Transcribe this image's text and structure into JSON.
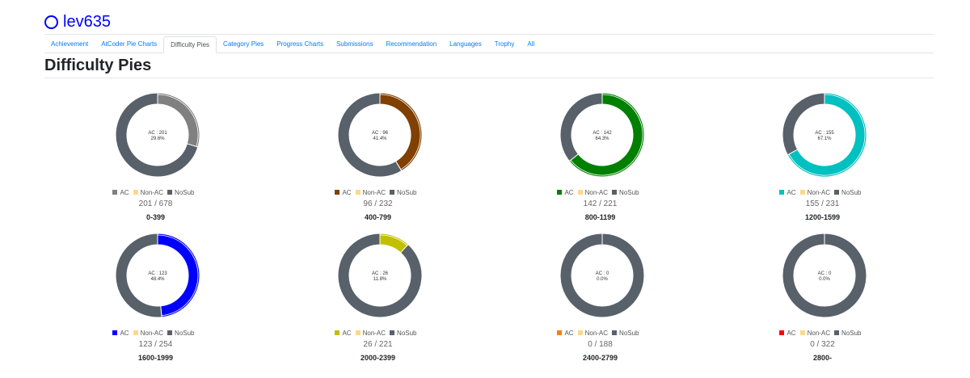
{
  "user": {
    "name": "lev635"
  },
  "tabs": [
    {
      "label": "Achievement",
      "active": false
    },
    {
      "label": "AtCoder Pie Charts",
      "active": false
    },
    {
      "label": "Difficulty Pies",
      "active": true
    },
    {
      "label": "Category Pies",
      "active": false
    },
    {
      "label": "Progress Charts",
      "active": false
    },
    {
      "label": "Submissions",
      "active": false
    },
    {
      "label": "Recommendation",
      "active": false
    },
    {
      "label": "Languages",
      "active": false
    },
    {
      "label": "Trophy",
      "active": false
    },
    {
      "label": "All",
      "active": false
    }
  ],
  "page": {
    "title": "Difficulty Pies"
  },
  "legend_labels": {
    "ac": "AC",
    "nonac": "Non-AC",
    "nosub": "NoSub"
  },
  "colors": {
    "nonac": "#fdd88c",
    "nosub": "#58616a",
    "ring_stroke": "#ffffff"
  },
  "chart_data": [
    {
      "type": "pie",
      "range": "0-399",
      "color": "#808080",
      "ac": 201,
      "nonac": 0,
      "total": 678,
      "label_ac": "AC : 201",
      "label_pct": "29.6%",
      "count_text": "201 / 678"
    },
    {
      "type": "pie",
      "range": "400-799",
      "color": "#804000",
      "ac": 96,
      "nonac": 0,
      "total": 232,
      "label_ac": "AC : 96",
      "label_pct": "41.4%",
      "count_text": "96 / 232"
    },
    {
      "type": "pie",
      "range": "800-1199",
      "color": "#008000",
      "ac": 142,
      "nonac": 0,
      "total": 221,
      "label_ac": "AC : 142",
      "label_pct": "64.3%",
      "count_text": "142 / 221"
    },
    {
      "type": "pie",
      "range": "1200-1599",
      "color": "#00c0c0",
      "ac": 155,
      "nonac": 0,
      "total": 231,
      "label_ac": "AC : 155",
      "label_pct": "67.1%",
      "count_text": "155 / 231"
    },
    {
      "type": "pie",
      "range": "1600-1999",
      "color": "#0000ff",
      "ac": 123,
      "nonac": 0,
      "total": 254,
      "label_ac": "AC : 123",
      "label_pct": "48.4%",
      "count_text": "123 / 254"
    },
    {
      "type": "pie",
      "range": "2000-2399",
      "color": "#c0c000",
      "ac": 26,
      "nonac": 0,
      "total": 221,
      "label_ac": "AC : 26",
      "label_pct": "11.8%",
      "count_text": "26 / 221"
    },
    {
      "type": "pie",
      "range": "2400-2799",
      "color": "#ff8000",
      "ac": 0,
      "nonac": 0,
      "total": 188,
      "label_ac": "AC : 0",
      "label_pct": "0.0%",
      "count_text": "0 / 188"
    },
    {
      "type": "pie",
      "range": "2800-",
      "color": "#ff0000",
      "ac": 0,
      "nonac": 0,
      "total": 322,
      "label_ac": "AC : 0",
      "label_pct": "0.0%",
      "count_text": "0 / 322"
    }
  ]
}
